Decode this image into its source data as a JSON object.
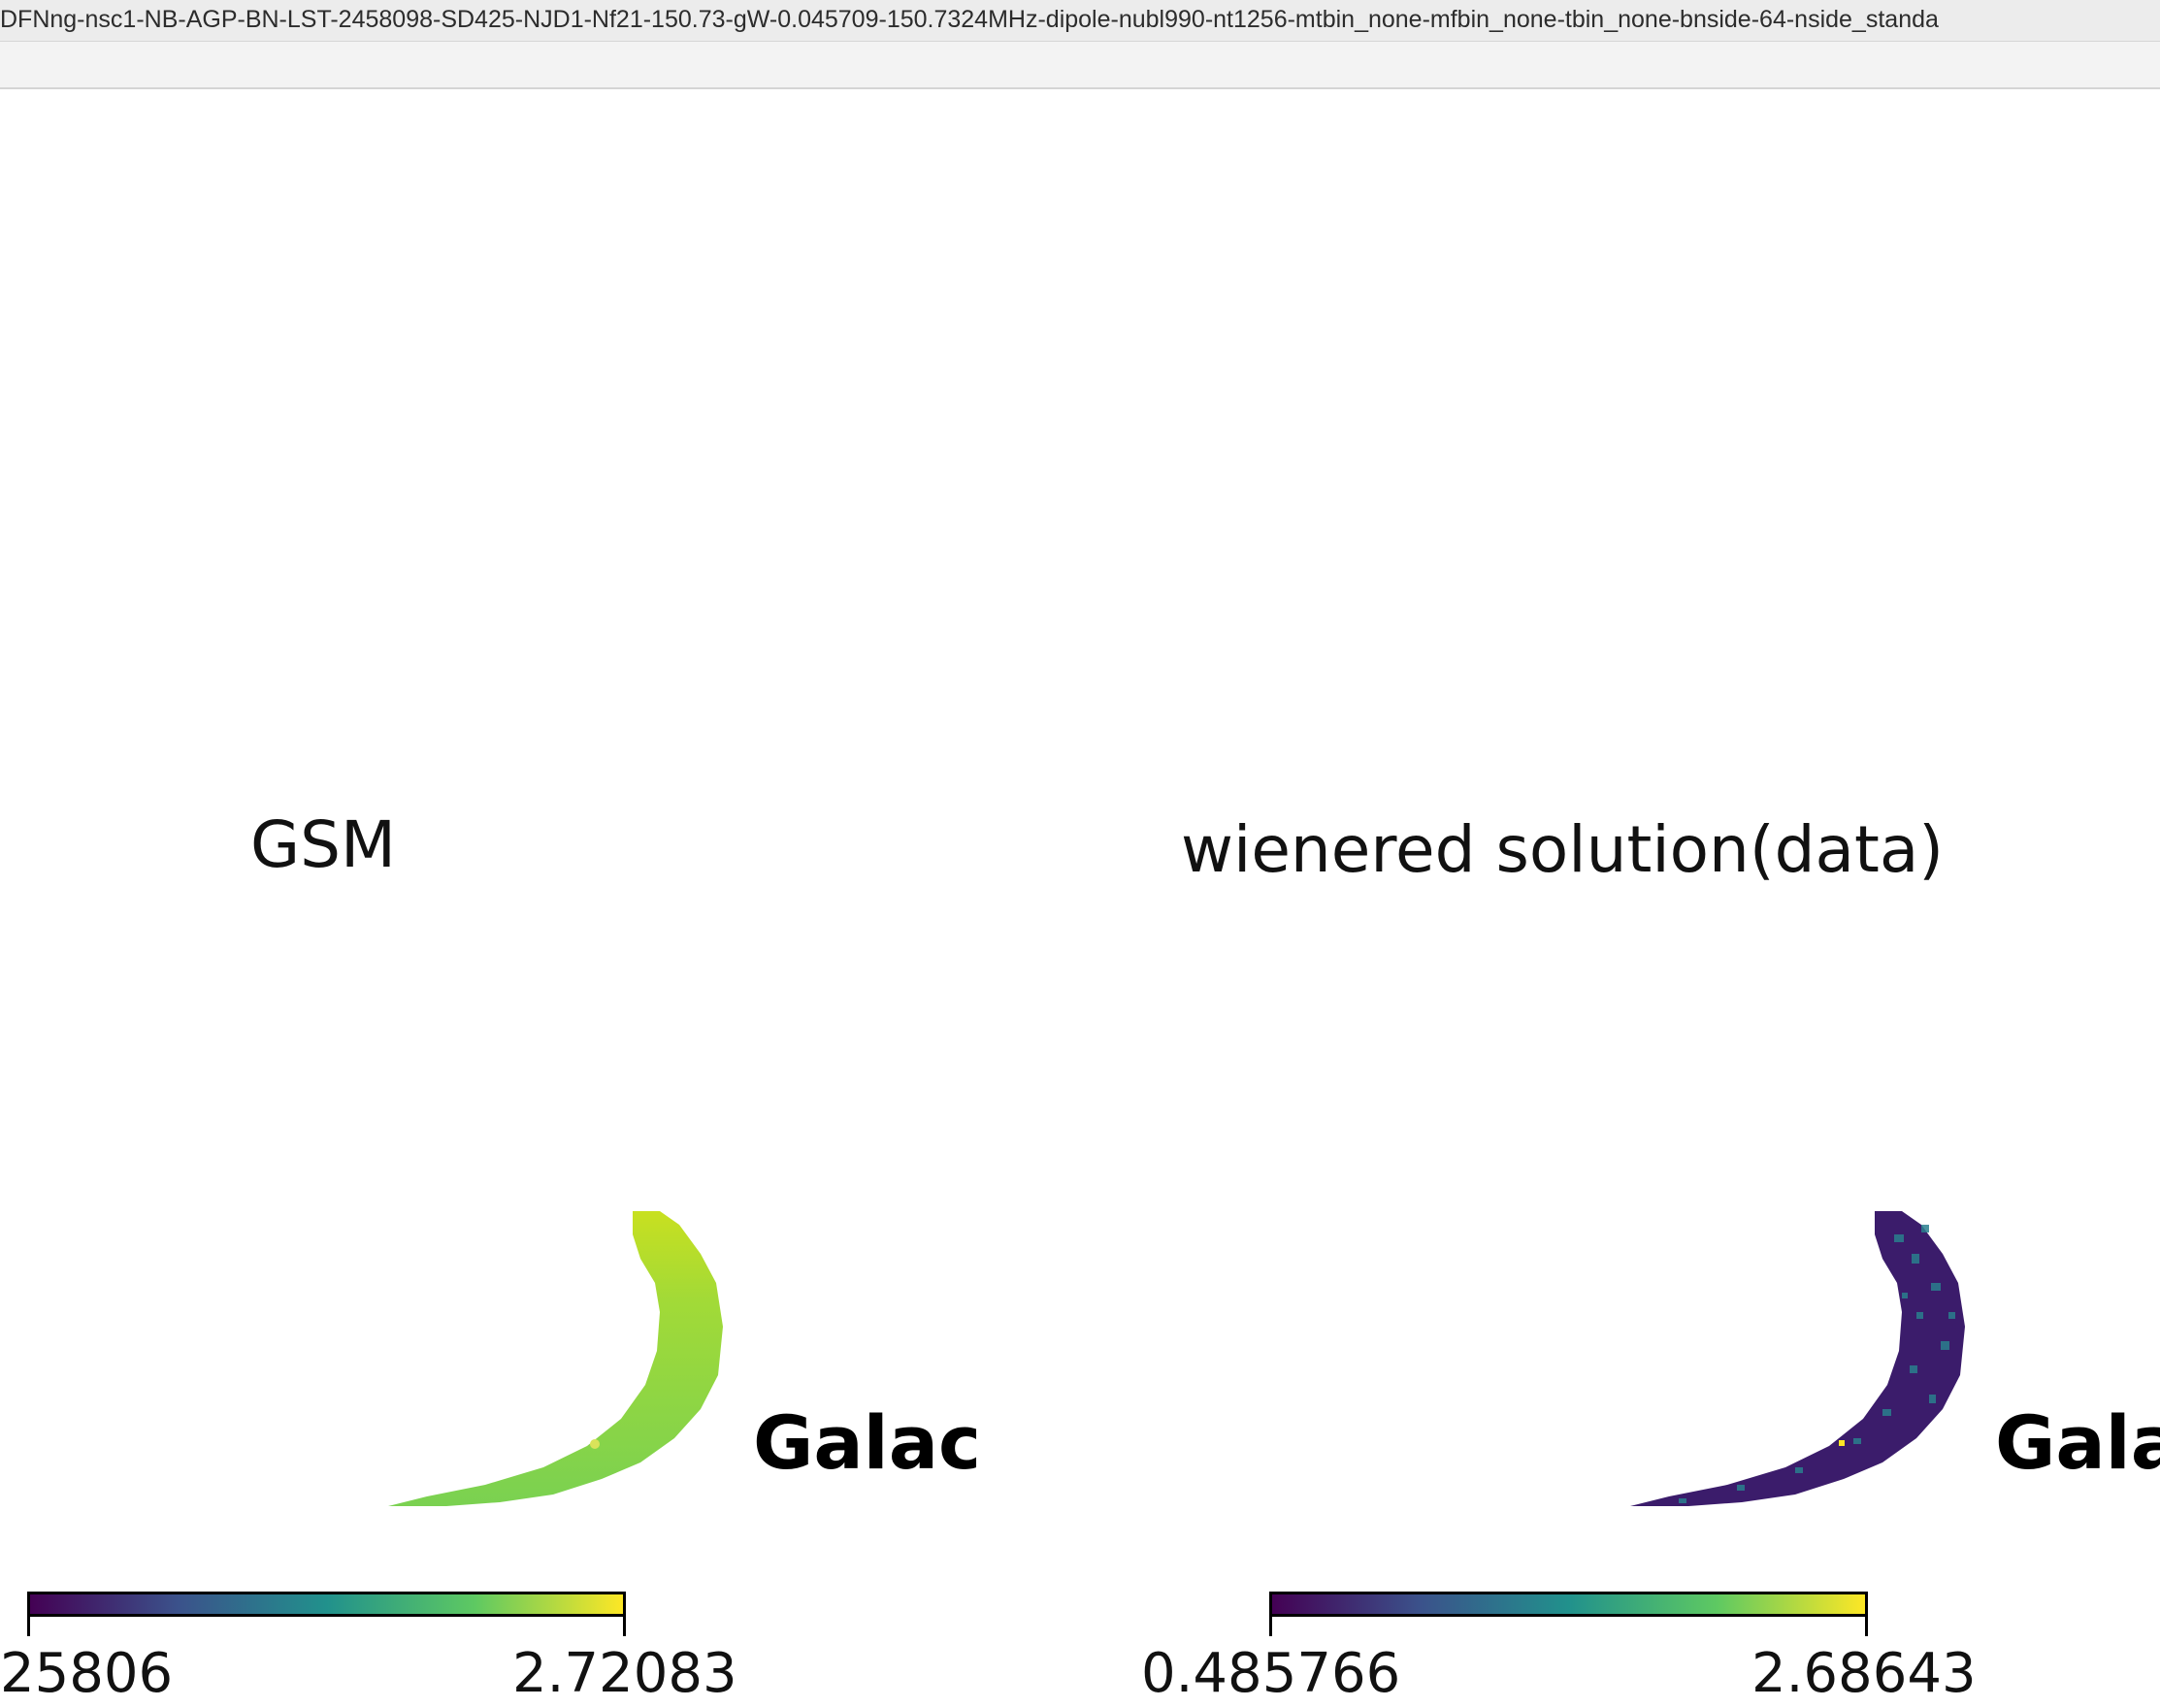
{
  "window": {
    "title": "DFNng-nsc1-NB-AGP-BN-LST-2458098-SD425-NJD1-Nf21-150.73-gW-0.045709-150.7324MHz-dipole-nubl990-nt1256-mtbin_none-mfbin_none-tbin_none-bnside-64-nside_standa"
  },
  "panels": [
    {
      "title": "GSM",
      "coord_label": "Galac",
      "colorbar": {
        "min_label": "25806",
        "max_label": "2.72083",
        "colormap": "viridis"
      },
      "map_fill": "#8ed645"
    },
    {
      "title": "wienered solution(data)",
      "coord_label": "Gala",
      "colorbar": {
        "min_label": "0.485766",
        "max_label": "2.68643",
        "colormap": "viridis"
      },
      "map_fill": "#3b1c6b"
    }
  ],
  "colors": {
    "viridis_start": "#440154",
    "viridis_mid": "#21918c",
    "viridis_end": "#fde725"
  }
}
